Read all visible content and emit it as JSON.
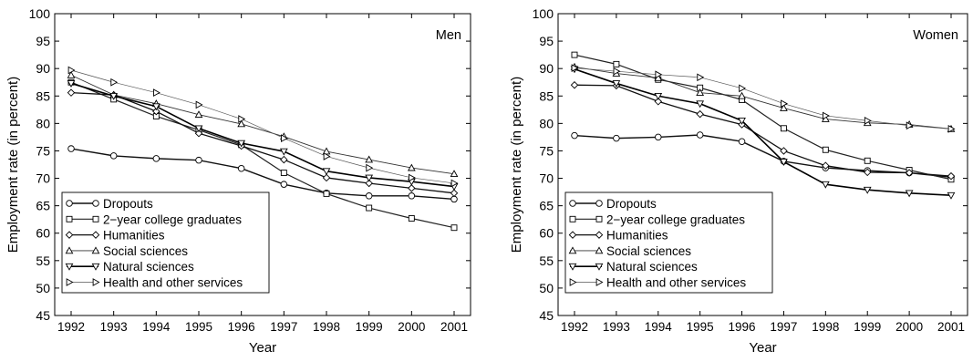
{
  "chart_data": [
    {
      "type": "line",
      "title": "",
      "panel_label": "Men",
      "xlabel": "Year",
      "ylabel": "Employment rate (in percent)",
      "x": [
        1992,
        1993,
        1994,
        1995,
        1996,
        1997,
        1998,
        1999,
        2000,
        2001
      ],
      "ylim": [
        45,
        100
      ],
      "yticks": [
        45,
        50,
        55,
        60,
        65,
        70,
        75,
        80,
        85,
        90,
        95,
        100
      ],
      "grid": false,
      "legend": "bottom-left",
      "series": [
        {
          "name": "Dropouts",
          "marker": "circle",
          "values": [
            75.4,
            74.1,
            73.6,
            73.3,
            71.8,
            68.9,
            67.3,
            66.8,
            66.8,
            66.2
          ]
        },
        {
          "name": "2−year college graduates",
          "marker": "square",
          "values": [
            87.5,
            84.4,
            81.3,
            78.8,
            76.1,
            71.0,
            67.2,
            64.6,
            62.7,
            61.0
          ]
        },
        {
          "name": "Humanities",
          "marker": "diamond",
          "values": [
            85.6,
            85.2,
            82.2,
            78.2,
            75.9,
            73.4,
            70.1,
            69.1,
            68.2,
            67.3
          ]
        },
        {
          "name": "Social sciences",
          "marker": "triangle-up",
          "values": [
            88.8,
            85.2,
            83.6,
            81.6,
            79.9,
            77.6,
            74.9,
            73.4,
            71.9,
            70.8
          ]
        },
        {
          "name": "Natural sciences",
          "marker": "triangle-down",
          "values": [
            87.3,
            85.0,
            83.1,
            79.1,
            76.4,
            74.9,
            71.3,
            70.1,
            69.4,
            68.5
          ]
        },
        {
          "name": "Health and other services",
          "marker": "triangle-right",
          "values": [
            89.7,
            87.5,
            85.6,
            83.4,
            80.8,
            77.3,
            74.0,
            71.9,
            70.1,
            69.1
          ]
        }
      ]
    },
    {
      "type": "line",
      "title": "",
      "panel_label": "Women",
      "xlabel": "Year",
      "ylabel": "Employment rate (in percent)",
      "x": [
        1992,
        1993,
        1994,
        1995,
        1996,
        1997,
        1998,
        1999,
        2000,
        2001
      ],
      "ylim": [
        45,
        100
      ],
      "yticks": [
        45,
        50,
        55,
        60,
        65,
        70,
        75,
        80,
        85,
        90,
        95,
        100
      ],
      "grid": false,
      "legend": "bottom-left",
      "series": [
        {
          "name": "Dropouts",
          "marker": "circle",
          "values": [
            77.8,
            77.3,
            77.5,
            77.9,
            76.7,
            73.1,
            71.9,
            71.4,
            71.0,
            70.2
          ]
        },
        {
          "name": "2−year college graduates",
          "marker": "square",
          "values": [
            92.5,
            90.8,
            88.0,
            86.5,
            84.3,
            79.1,
            75.2,
            73.2,
            71.5,
            69.8
          ]
        },
        {
          "name": "Humanities",
          "marker": "diamond",
          "values": [
            87.0,
            86.9,
            84.0,
            81.7,
            79.8,
            75.0,
            72.3,
            71.1,
            71.0,
            70.4
          ]
        },
        {
          "name": "Social sciences",
          "marker": "triangle-up",
          "values": [
            90.3,
            89.1,
            88.3,
            85.6,
            85.0,
            82.8,
            80.8,
            80.1,
            79.8,
            79.0
          ]
        },
        {
          "name": "Natural sciences",
          "marker": "triangle-down",
          "values": [
            89.9,
            87.3,
            85.0,
            83.6,
            80.5,
            73.0,
            68.9,
            67.9,
            67.3,
            66.9
          ]
        },
        {
          "name": "Health and other services",
          "marker": "triangle-right",
          "values": [
            90.1,
            89.5,
            88.9,
            88.4,
            86.4,
            83.6,
            81.4,
            80.5,
            79.6,
            79.0
          ]
        }
      ]
    }
  ]
}
